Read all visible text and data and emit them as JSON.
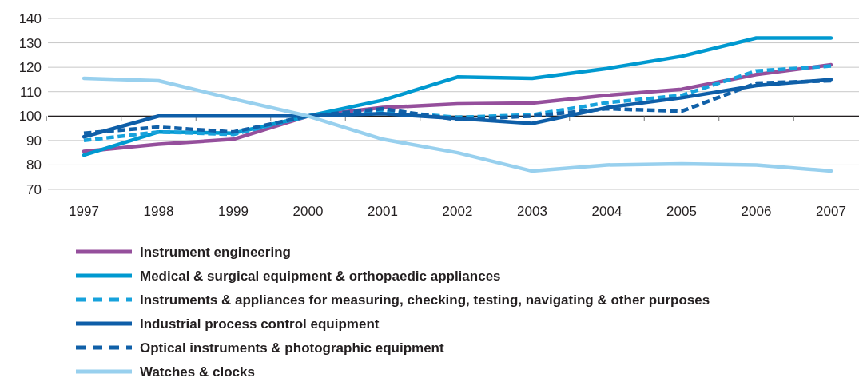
{
  "chart_data": {
    "type": "line",
    "categories": [
      "1997",
      "1998",
      "1999",
      "2000",
      "2001",
      "2002",
      "2003",
      "2004",
      "2005",
      "2006",
      "2007"
    ],
    "ylim": [
      70,
      140
    ],
    "yticks": [
      70,
      80,
      90,
      100,
      110,
      120,
      130,
      140
    ],
    "grid": "y",
    "legend": "bottom",
    "marker": "none",
    "ref_lines": [
      {
        "axis": "y",
        "value": 100,
        "color": "#231f20"
      }
    ],
    "series": [
      {
        "name": "Instrument engineering",
        "color": "#954f9c",
        "line_style": "solid",
        "values": [
          85.5,
          88.5,
          90.5,
          100,
          103.5,
          105,
          105.3,
          108.5,
          111,
          117,
          121
        ]
      },
      {
        "name": "Medical & surgical equipment & orthopaedic appliances",
        "color": "#0099d0",
        "line_style": "solid",
        "values": [
          84,
          93.5,
          93,
          100,
          106.5,
          116,
          115.5,
          119.5,
          124.5,
          132,
          132
        ]
      },
      {
        "name": "Instruments & appliances for measuring, checking, testing, navigating & other purposes",
        "color": "#17a2dc",
        "line_style": "dashed",
        "values": [
          90,
          93.5,
          92.5,
          100,
          102,
          99.5,
          100.5,
          105.5,
          108.5,
          118.5,
          120.5
        ]
      },
      {
        "name": "Industrial process control equipment",
        "color": "#0e5ea8",
        "line_style": "solid",
        "values": [
          91.5,
          100,
          100,
          100,
          101,
          99,
          97,
          103.5,
          107.5,
          112.5,
          115
        ]
      },
      {
        "name": "Optical instruments & photographic equipment",
        "color": "#1060a8",
        "line_style": "dashed",
        "values": [
          93,
          95.5,
          93.5,
          100,
          103,
          98.5,
          100,
          103,
          102,
          113.5,
          114.5
        ]
      },
      {
        "name": "Watches & clocks",
        "color": "#98d0ee",
        "line_style": "solid",
        "values": [
          115.5,
          114.5,
          107,
          100,
          90.5,
          85,
          77.5,
          80,
          80.5,
          80,
          77.5
        ]
      }
    ]
  }
}
